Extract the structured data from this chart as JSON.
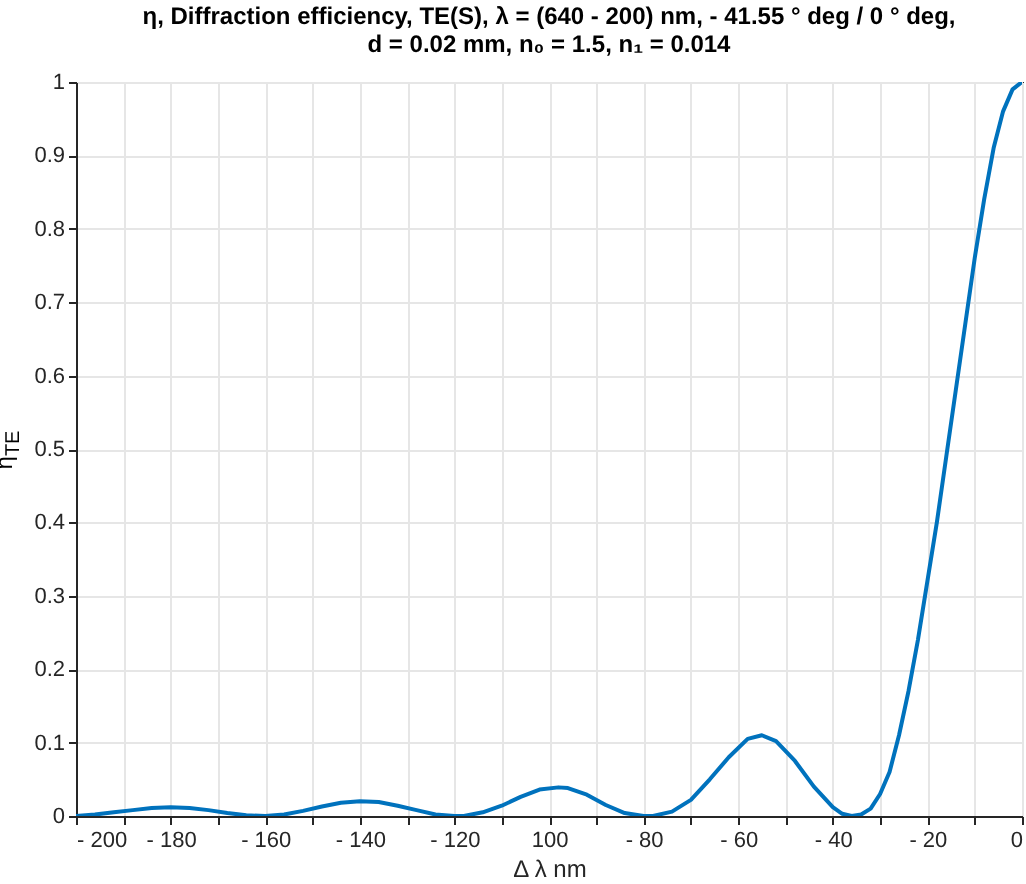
{
  "chart_data": {
    "type": "line",
    "title": [
      "η, Diffraction efficiency, TE(S), λ = (640 - 200) nm, - 41.55 ° deg / 0 ° deg,",
      "d = 0.02 mm, n₀ = 1.5, n₁ = 0.014"
    ],
    "xlabel": "Δ λ nm",
    "ylabel": "η$_{TE}$",
    "x": [
      -200,
      -196,
      -192,
      -188,
      -184,
      -180,
      -176,
      -172,
      -168,
      -164,
      -160,
      -156,
      -152,
      -148,
      -144,
      -140,
      -136,
      -132,
      -128,
      -124,
      -120,
      -118,
      -114,
      -110,
      -106,
      -102,
      -98,
      -96,
      -92,
      -88,
      -84,
      -80,
      -78,
      -74,
      -70,
      -66,
      -62,
      -58,
      -55,
      -52,
      -48,
      -44,
      -40,
      -38,
      -36,
      -34,
      -32,
      -30,
      -28,
      -26,
      -24,
      -22,
      -20,
      -18,
      -16,
      -14,
      -12,
      -10,
      -8,
      -6,
      -4,
      -2,
      0
    ],
    "series": [
      {
        "color": "#0072bd",
        "values": [
          0,
          0.002,
          0.005,
          0.008,
          0.011,
          0.012,
          0.011,
          0.008,
          0.004,
          0.001,
          0,
          0.002,
          0.007,
          0.013,
          0.018,
          0.02,
          0.019,
          0.014,
          0.008,
          0.002,
          0,
          0,
          0.005,
          0.014,
          0.026,
          0.036,
          0.039,
          0.038,
          0.029,
          0.015,
          0.004,
          0,
          0,
          0.006,
          0.022,
          0.05,
          0.08,
          0.105,
          0.11,
          0.102,
          0.075,
          0.04,
          0.012,
          0.003,
          0,
          0.002,
          0.01,
          0.03,
          0.06,
          0.11,
          0.17,
          0.24,
          0.32,
          0.4,
          0.49,
          0.58,
          0.67,
          0.76,
          0.84,
          0.91,
          0.96,
          0.99,
          1
        ]
      }
    ],
    "xlim": [
      -200,
      0
    ],
    "ylim": [
      0,
      1
    ],
    "xticks": [
      {
        "value": -200,
        "label": "- 200"
      },
      {
        "value": -190,
        "label": null
      },
      {
        "value": -180,
        "label": "- 180"
      },
      {
        "value": -170,
        "label": null
      },
      {
        "value": -160,
        "label": "- 160"
      },
      {
        "value": -150,
        "label": null
      },
      {
        "value": -140,
        "label": "- 140"
      },
      {
        "value": -130,
        "label": null
      },
      {
        "value": -120,
        "label": "- 120"
      },
      {
        "value": -110,
        "label": null
      },
      {
        "value": -100,
        "label": "100"
      },
      {
        "value": -90,
        "label": null
      },
      {
        "value": -80,
        "label": "- 80"
      },
      {
        "value": -70,
        "label": null
      },
      {
        "value": -60,
        "label": "- 60"
      },
      {
        "value": -50,
        "label": null
      },
      {
        "value": -40,
        "label": "- 40"
      },
      {
        "value": -30,
        "label": null
      },
      {
        "value": -20,
        "label": "- 20"
      },
      {
        "value": -10,
        "label": null
      },
      0
    ],
    "yticks": [
      0,
      0.1,
      0.2,
      0.3,
      0.4,
      0.5,
      0.6,
      0.7,
      0.8,
      0.9,
      1
    ],
    "grid": true,
    "line_style": "solid"
  }
}
